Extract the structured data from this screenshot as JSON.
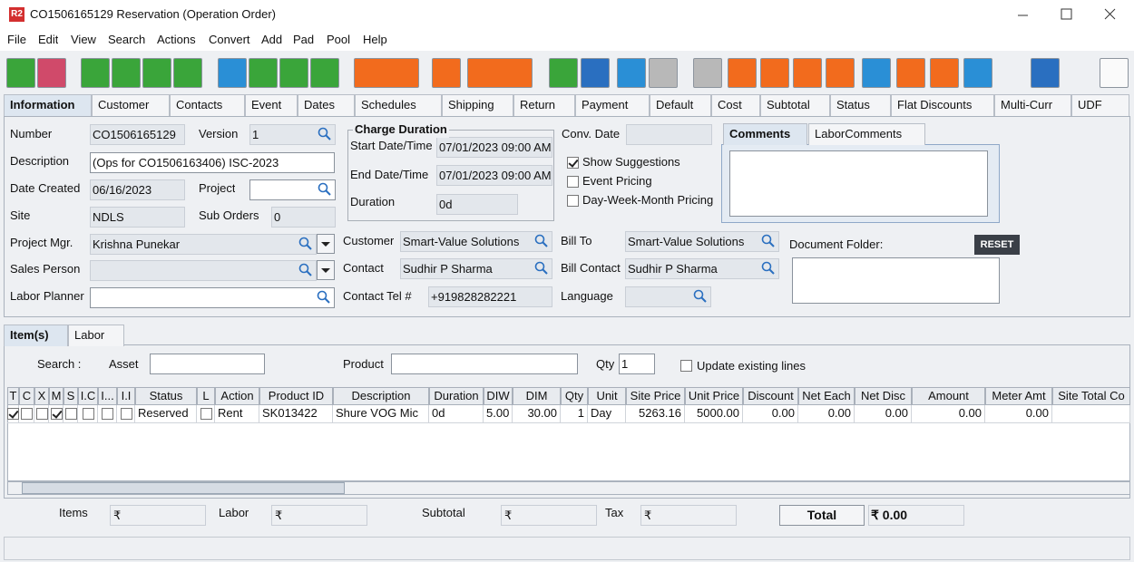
{
  "window": {
    "icon": "R2",
    "title": "CO1506165129 Reservation (Operation Order)"
  },
  "menu": [
    "File",
    "Edit",
    "View",
    "Search",
    "Actions",
    "Convert",
    "Add",
    "Pad",
    "Pool",
    "Help"
  ],
  "tabs": [
    "Information",
    "Customer",
    "Contacts",
    "Event",
    "Dates",
    "Schedules",
    "Shipping",
    "Return",
    "Payment",
    "Default",
    "Cost",
    "Subtotal",
    "Status",
    "Flat Discounts",
    "Multi-Curr",
    "UDF"
  ],
  "info": {
    "number": {
      "label": "Number",
      "value": "CO1506165129"
    },
    "version": {
      "label": "Version",
      "value": "1"
    },
    "description": {
      "label": "Description",
      "value": "(Ops for CO1506163406) ISC-2023"
    },
    "date_created": {
      "label": "Date Created",
      "value": "06/16/2023"
    },
    "project": {
      "label": "Project"
    },
    "site": {
      "label": "Site",
      "value": "NDLS"
    },
    "sub_orders": {
      "label": "Sub Orders",
      "value": "0"
    },
    "project_mgr": {
      "label": "Project Mgr.",
      "value": "Krishna Punekar"
    },
    "sales_person": {
      "label": "Sales Person"
    },
    "labor_planner": {
      "label": "Labor Planner"
    },
    "charge_duration": {
      "title": "Charge Duration",
      "start": {
        "label": "Start Date/Time",
        "value": "07/01/2023 09:00 AM"
      },
      "end": {
        "label": "End Date/Time",
        "value": "07/01/2023 09:00 AM"
      },
      "duration": {
        "label": "Duration",
        "value": "0d"
      }
    },
    "customer": {
      "label": "Customer",
      "value": "Smart-Value Solutions"
    },
    "contact": {
      "label": "Contact",
      "value": "Sudhir P Sharma"
    },
    "contact_tel": {
      "label": "Contact Tel #",
      "value": "+919828282221"
    },
    "conv_date": {
      "label": "Conv. Date"
    },
    "options": [
      {
        "label": "Show Suggestions",
        "checked": true
      },
      {
        "label": "Event Pricing",
        "checked": false
      },
      {
        "label": "Day-Week-Month Pricing",
        "checked": false
      }
    ],
    "bill_to": {
      "label": "Bill To",
      "value": "Smart-Value Solutions"
    },
    "bill_contact": {
      "label": "Bill Contact",
      "value": "Sudhir P Sharma"
    },
    "language": {
      "label": "Language"
    },
    "comment_tabs": [
      "Comments",
      "LaborComments"
    ],
    "document_folder": {
      "label": "Document Folder:",
      "button": "RESET"
    }
  },
  "item_tabs": [
    "Item(s)",
    "Labor"
  ],
  "search": {
    "label": "Search :",
    "asset": "Asset",
    "product": "Product",
    "qty": {
      "label": "Qty",
      "value": "1"
    },
    "update": {
      "label": "Update existing lines",
      "checked": false
    }
  },
  "table": {
    "columns": [
      "T",
      "C",
      "X",
      "M",
      "S",
      "I.C",
      "I...",
      "I.I",
      "Status",
      "L",
      "Action",
      "Product ID",
      "Description",
      "Duration",
      "DIW",
      "DIM",
      "Qty",
      "Unit",
      "Site Price",
      "Unit Price",
      "Discount",
      "Net Each",
      "Net Disc",
      "Amount",
      "Meter Amt",
      "Site Total Co"
    ],
    "rows": [
      [
        true,
        false,
        false,
        true,
        false,
        false,
        false,
        false,
        "Reserved",
        false,
        "Rent",
        "SK013422",
        "Shure VOG Mic",
        "0d",
        "5.00",
        "30.00",
        "1",
        "Day",
        "5263.16",
        "5000.00",
        "0.00",
        "0.00",
        "0.00",
        "0.00",
        "0.00",
        null
      ]
    ]
  },
  "footer": {
    "items": {
      "label": "Items",
      "value": "₹"
    },
    "labor": {
      "label": "Labor",
      "value": "₹"
    },
    "subtotal": {
      "label": "Subtotal",
      "value": "₹"
    },
    "tax": {
      "label": "Tax",
      "value": "₹"
    },
    "total": {
      "label": "Total",
      "value": "₹ 0.00"
    }
  }
}
